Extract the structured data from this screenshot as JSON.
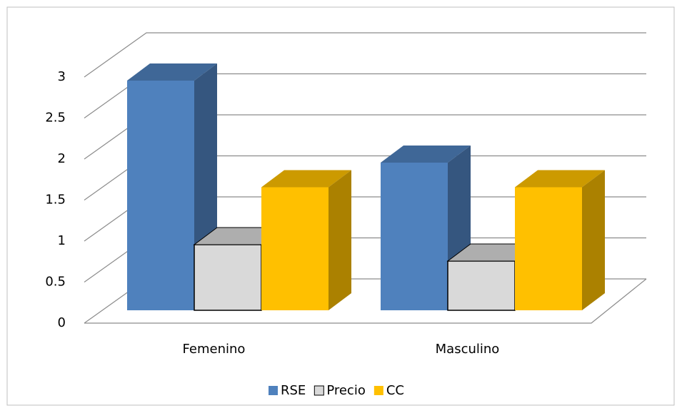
{
  "chart_data": {
    "type": "bar3d",
    "categories": [
      "Femenino",
      "Masculino"
    ],
    "series": [
      {
        "name": "RSE",
        "color": "#4f81bd",
        "values": [
          2.8,
          1.8
        ]
      },
      {
        "name": "Precio",
        "color": "#d9d9d9",
        "values": [
          0.8,
          0.6
        ]
      },
      {
        "name": "CC",
        "color": "#ffc000",
        "values": [
          1.5,
          1.5
        ]
      }
    ],
    "ylim": [
      0,
      3
    ],
    "yticks": [
      0,
      0.5,
      1,
      1.5,
      2,
      2.5,
      3
    ],
    "grid": true,
    "legend": "bottom"
  }
}
